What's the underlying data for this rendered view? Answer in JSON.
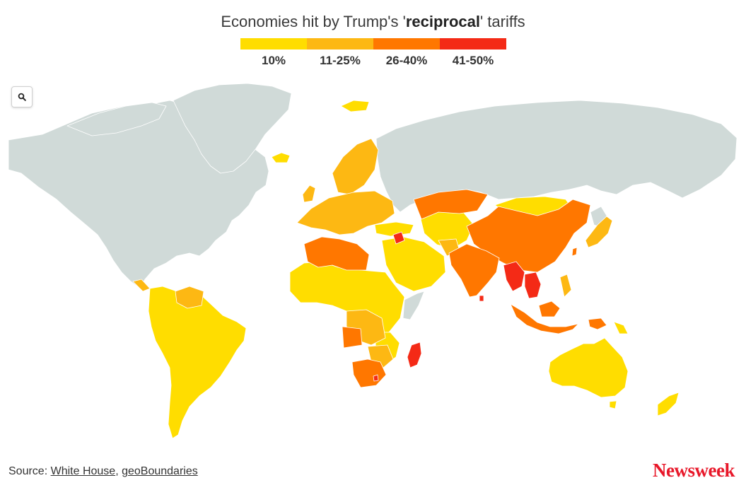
{
  "title": {
    "prefix": "Economies hit by Trump's '",
    "emphasis": "reciprocal",
    "suffix": "' tariffs"
  },
  "legend": [
    {
      "label": "10%",
      "color": "#ffdd00"
    },
    {
      "label": "11-25%",
      "color": "#fdb813"
    },
    {
      "label": "26-40%",
      "color": "#ff7700"
    },
    {
      "label": "41-50%",
      "color": "#f42a16"
    }
  ],
  "colors": {
    "no_data": "#d0dad8",
    "border": "#ffffff",
    "brand": "#e8182a"
  },
  "controls": {
    "zoom_icon": "magnifier-icon"
  },
  "source": {
    "prefix": "Source: ",
    "links": [
      "White House",
      "geoBoundaries"
    ],
    "separator": ", "
  },
  "brand": "Newsweek"
}
